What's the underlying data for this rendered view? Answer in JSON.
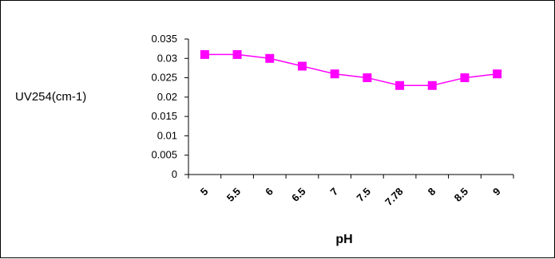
{
  "chart_data": {
    "type": "line",
    "title": "",
    "xlabel": "pH",
    "ylabel": "UV254(cm-1)",
    "categories": [
      "5",
      "5.5",
      "6",
      "6.5",
      "7",
      "7.5",
      "7.78",
      "8",
      "8.5",
      "9"
    ],
    "series": [
      {
        "values": [
          0.031,
          0.031,
          0.03,
          0.028,
          0.026,
          0.025,
          0.023,
          0.023,
          0.025,
          0.026
        ],
        "color": "#ff00ff",
        "marker": "square"
      }
    ],
    "ylim": [
      0,
      0.035
    ],
    "yticks": [
      "0",
      "0.005",
      "0.01",
      "0.015",
      "0.02",
      "0.025",
      "0.03",
      "0.035"
    ],
    "grid": false,
    "legend": "none"
  }
}
